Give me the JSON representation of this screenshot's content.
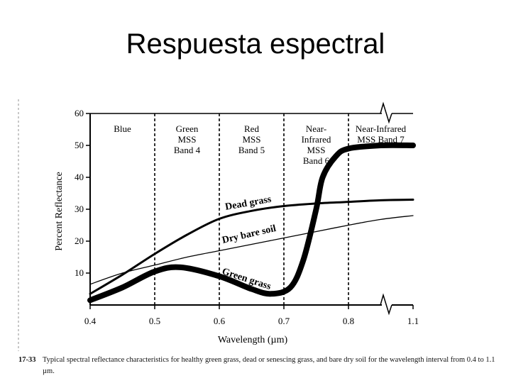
{
  "slide": {
    "title": "Respuesta espectral"
  },
  "caption": {
    "figure_number": "17-33",
    "text": "Typical spectral reflectance characteristics for healthy green grass, dead or senescing grass, and bare dry soil for the wavelength interval from 0.4 to 1.1 µm."
  },
  "chart_data": {
    "type": "line",
    "title": "",
    "xlabel": "Wavelength (µm)",
    "ylabel": "Percent Reflectance",
    "xlim": [
      0.4,
      1.1
    ],
    "ylim": [
      0,
      60
    ],
    "x_ticks": [
      "0.4",
      "0.5",
      "0.6",
      "0.7",
      "0.8",
      "1.1"
    ],
    "y_ticks": [
      "10",
      "20",
      "30",
      "40",
      "50",
      "60"
    ],
    "axis_break_note": "x axis broken between 0.8 and 1.1",
    "grid": false,
    "bands": [
      {
        "label_lines": [
          "Blue"
        ],
        "range": [
          0.4,
          0.5
        ]
      },
      {
        "label_lines": [
          "Green",
          "MSS",
          "Band 4"
        ],
        "range": [
          0.5,
          0.6
        ]
      },
      {
        "label_lines": [
          "Red",
          "MSS",
          "Band 5"
        ],
        "range": [
          0.6,
          0.7
        ]
      },
      {
        "label_lines": [
          "Near-",
          "Infrared",
          "MSS",
          "Band 6"
        ],
        "range": [
          0.7,
          0.8
        ]
      },
      {
        "label_lines": [
          "Near-Infrared",
          "MSS Band 7"
        ],
        "range": [
          0.8,
          1.1
        ]
      }
    ],
    "series": [
      {
        "name": "Dead grass",
        "style": "medium",
        "x": [
          0.4,
          0.45,
          0.5,
          0.55,
          0.6,
          0.65,
          0.7,
          0.75,
          0.8,
          0.95,
          1.1
        ],
        "y": [
          3.5,
          9.5,
          16,
          22,
          27,
          29.5,
          31,
          31.8,
          32.3,
          32.8,
          33
        ]
      },
      {
        "name": "Dry bare soil",
        "style": "thin",
        "x": [
          0.4,
          0.45,
          0.5,
          0.55,
          0.6,
          0.65,
          0.7,
          0.75,
          0.8,
          0.95,
          1.1
        ],
        "y": [
          6.5,
          10,
          12.5,
          15,
          17,
          19,
          21,
          23,
          25,
          26.8,
          28
        ]
      },
      {
        "name": "Green grass",
        "style": "thick",
        "x": [
          0.4,
          0.45,
          0.5,
          0.54,
          0.6,
          0.65,
          0.68,
          0.71,
          0.73,
          0.75,
          0.76,
          0.78,
          0.8,
          0.95,
          1.1
        ],
        "y": [
          1.5,
          5.5,
          10.5,
          11.8,
          9,
          5,
          3.5,
          5.5,
          14,
          30,
          40,
          46.5,
          49,
          50,
          50
        ]
      }
    ]
  }
}
